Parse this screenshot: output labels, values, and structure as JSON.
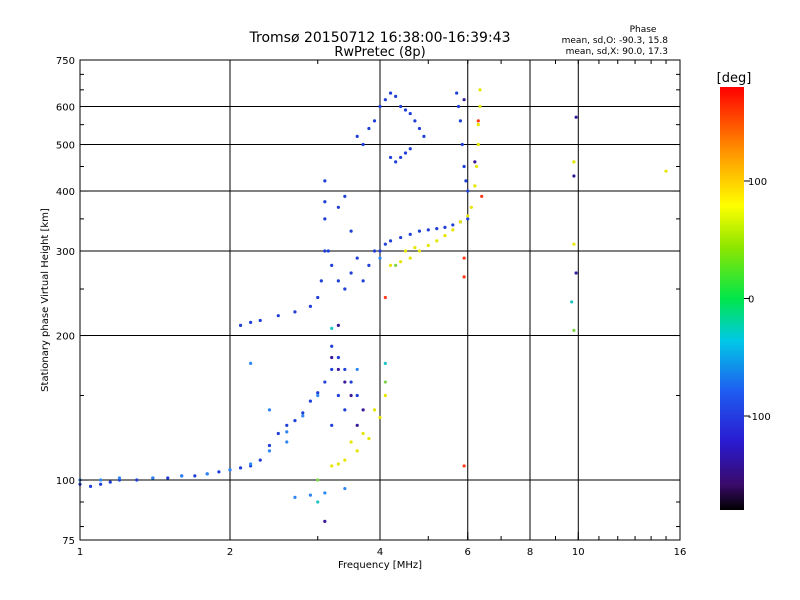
{
  "figure": {
    "title": "Tromsø 20150712 16:38:00-16:39:43",
    "subtitle": "RwPretec (8p)",
    "phase_header": "Phase",
    "phase_stats": [
      "mean, sd,O: -90.3, 15.8",
      "mean, sd,X:  90.0, 17.3"
    ]
  },
  "chart_data": {
    "type": "scatter",
    "xlabel": "Frequency [MHz]",
    "ylabel": "Stationary phase Virtual Height [km]",
    "x_scale": "log",
    "y_scale": "log",
    "xlim": [
      1,
      16
    ],
    "ylim": [
      75,
      750
    ],
    "xticks": [
      1,
      2,
      4,
      6,
      8,
      10,
      16
    ],
    "yticks": [
      75,
      100,
      200,
      300,
      400,
      500,
      600,
      750
    ],
    "x_grid": [
      2,
      4,
      6,
      8,
      10
    ],
    "y_grid": [
      100,
      200,
      300,
      400,
      500,
      600
    ],
    "grid": true,
    "colorbar": {
      "label": "[deg]",
      "range": [
        -180,
        180
      ],
      "ticks": [
        100,
        0,
        -100
      ]
    },
    "series": [
      {
        "phase": -100,
        "color": "#1f3fd8",
        "points": [
          [
            1.0,
            98
          ],
          [
            1.05,
            97
          ],
          [
            1.1,
            98
          ],
          [
            1.15,
            99
          ],
          [
            1.2,
            100
          ],
          [
            1.3,
            100
          ],
          [
            1.4,
            101
          ],
          [
            1.5,
            101
          ],
          [
            1.6,
            102
          ],
          [
            1.7,
            102
          ],
          [
            1.8,
            103
          ],
          [
            1.9,
            104
          ],
          [
            2.0,
            105
          ],
          [
            2.1,
            106
          ],
          [
            2.2,
            107
          ],
          [
            2.3,
            110
          ],
          [
            2.4,
            118
          ],
          [
            2.5,
            125
          ],
          [
            2.6,
            130
          ],
          [
            2.7,
            133
          ],
          [
            2.8,
            138
          ],
          [
            2.9,
            146
          ],
          [
            3.0,
            152
          ],
          [
            3.1,
            160
          ],
          [
            3.2,
            170
          ],
          [
            2.1,
            210
          ],
          [
            2.2,
            213
          ],
          [
            2.3,
            215
          ],
          [
            2.5,
            220
          ],
          [
            2.7,
            224
          ],
          [
            2.9,
            230
          ],
          [
            3.0,
            240
          ],
          [
            3.05,
            260
          ],
          [
            3.1,
            300
          ],
          [
            3.1,
            350
          ],
          [
            3.1,
            380
          ],
          [
            3.1,
            420
          ],
          [
            3.15,
            300
          ],
          [
            3.2,
            280
          ],
          [
            3.3,
            260
          ],
          [
            3.4,
            250
          ],
          [
            3.5,
            270
          ],
          [
            3.6,
            290
          ],
          [
            3.7,
            260
          ],
          [
            3.8,
            280
          ],
          [
            3.9,
            300
          ],
          [
            3.3,
            370
          ],
          [
            3.4,
            390
          ],
          [
            3.5,
            330
          ],
          [
            3.6,
            520
          ],
          [
            3.7,
            500
          ],
          [
            3.8,
            540
          ],
          [
            3.9,
            560
          ],
          [
            4.0,
            600
          ],
          [
            4.1,
            620
          ],
          [
            4.2,
            640
          ],
          [
            4.3,
            630
          ],
          [
            4.4,
            600
          ],
          [
            4.5,
            590
          ],
          [
            4.6,
            580
          ],
          [
            4.7,
            560
          ],
          [
            4.8,
            540
          ],
          [
            4.9,
            520
          ],
          [
            4.2,
            470
          ],
          [
            4.3,
            460
          ],
          [
            4.4,
            470
          ],
          [
            4.5,
            480
          ],
          [
            4.6,
            490
          ],
          [
            4.0,
            300
          ],
          [
            4.1,
            310
          ],
          [
            4.2,
            315
          ],
          [
            4.4,
            320
          ],
          [
            4.6,
            325
          ],
          [
            4.8,
            330
          ],
          [
            5.0,
            332
          ],
          [
            5.2,
            334
          ],
          [
            5.4,
            336
          ],
          [
            5.6,
            340
          ],
          [
            5.8,
            345
          ],
          [
            6.0,
            350
          ],
          [
            5.7,
            640
          ],
          [
            5.75,
            600
          ],
          [
            5.8,
            560
          ],
          [
            5.85,
            500
          ],
          [
            5.9,
            450
          ],
          [
            5.95,
            420
          ],
          [
            6.0,
            400
          ],
          [
            3.2,
            190
          ],
          [
            3.3,
            180
          ],
          [
            3.4,
            170
          ],
          [
            3.5,
            160
          ],
          [
            3.3,
            150
          ],
          [
            3.4,
            140
          ],
          [
            3.6,
            150
          ],
          [
            3.2,
            130
          ]
        ]
      },
      {
        "phase": -60,
        "color": "#2e86f5",
        "points": [
          [
            1.0,
            100
          ],
          [
            1.1,
            100
          ],
          [
            1.2,
            101
          ],
          [
            1.4,
            101
          ],
          [
            1.6,
            102
          ],
          [
            1.8,
            103
          ],
          [
            2.0,
            105
          ],
          [
            2.2,
            108
          ],
          [
            2.4,
            115
          ],
          [
            2.6,
            126
          ],
          [
            2.8,
            136
          ],
          [
            3.0,
            150
          ],
          [
            2.2,
            175
          ],
          [
            2.4,
            140
          ],
          [
            2.6,
            120
          ],
          [
            2.7,
            92
          ],
          [
            2.9,
            93
          ],
          [
            3.1,
            94
          ],
          [
            3.4,
            96
          ],
          [
            3.6,
            170
          ],
          [
            4.0,
            290
          ]
        ]
      },
      {
        "phase": -150,
        "color": "#3a1a9a",
        "points": [
          [
            3.2,
            180
          ],
          [
            3.4,
            160
          ],
          [
            3.6,
            130
          ],
          [
            3.3,
            170
          ],
          [
            3.5,
            150
          ],
          [
            3.7,
            140
          ],
          [
            3.1,
            82
          ],
          [
            9.9,
            570
          ],
          [
            9.9,
            270
          ],
          [
            9.8,
            430
          ],
          [
            5.9,
            620
          ],
          [
            6.2,
            460
          ],
          [
            3.3,
            210
          ]
        ]
      },
      {
        "phase": 100,
        "color": "#e6e600",
        "points": [
          [
            3.2,
            107
          ],
          [
            3.3,
            108
          ],
          [
            3.4,
            110
          ],
          [
            3.6,
            115
          ],
          [
            3.8,
            122
          ],
          [
            4.0,
            135
          ],
          [
            4.1,
            150
          ],
          [
            4.2,
            280
          ],
          [
            4.4,
            285
          ],
          [
            4.6,
            290
          ],
          [
            4.8,
            300
          ],
          [
            5.0,
            308
          ],
          [
            5.2,
            315
          ],
          [
            5.4,
            323
          ],
          [
            5.6,
            332
          ],
          [
            5.8,
            345
          ],
          [
            6.0,
            355
          ],
          [
            6.1,
            370
          ],
          [
            6.2,
            410
          ],
          [
            6.25,
            450
          ],
          [
            6.3,
            500
          ],
          [
            6.3,
            550
          ],
          [
            6.35,
            600
          ],
          [
            6.35,
            650
          ],
          [
            4.5,
            300
          ],
          [
            4.7,
            305
          ],
          [
            9.8,
            460
          ],
          [
            9.8,
            310
          ],
          [
            15.0,
            440
          ],
          [
            3.5,
            120
          ],
          [
            3.7,
            125
          ],
          [
            3.9,
            140
          ]
        ]
      },
      {
        "phase": 60,
        "color": "#7fd34a",
        "points": [
          [
            4.1,
            160
          ],
          [
            4.3,
            280
          ],
          [
            9.8,
            205
          ],
          [
            3.0,
            100
          ]
        ]
      },
      {
        "phase": 160,
        "color": "#ff3a1a",
        "points": [
          [
            5.9,
            107
          ],
          [
            5.9,
            290
          ],
          [
            5.9,
            265
          ],
          [
            6.4,
            390
          ],
          [
            4.1,
            240
          ],
          [
            6.3,
            560
          ]
        ]
      },
      {
        "phase": 20,
        "color": "#1fc4c4",
        "points": [
          [
            9.7,
            235
          ],
          [
            3.0,
            90
          ],
          [
            4.1,
            175
          ],
          [
            3.2,
            207
          ]
        ]
      }
    ]
  }
}
